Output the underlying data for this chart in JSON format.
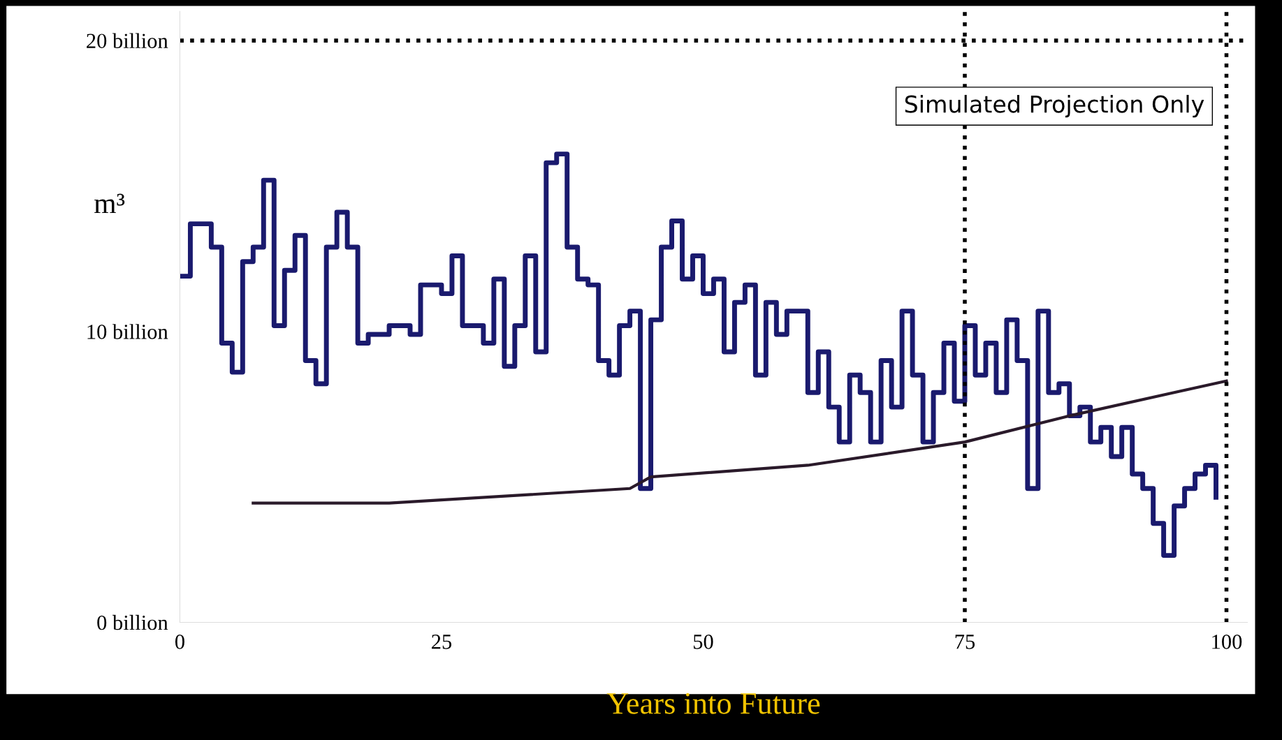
{
  "chart_data": {
    "type": "step",
    "xlabel": "Years into Future",
    "ylabel": "m³",
    "annotations": [
      "Simulated Projection Only"
    ],
    "xlim": [
      0,
      102
    ],
    "xticks": [
      0,
      25,
      50,
      75,
      100
    ],
    "ylim": [
      0,
      21
    ],
    "yticks": [
      {
        "value": 0,
        "label": "0 billion"
      },
      {
        "value": 10,
        "label": "10 billion"
      },
      {
        "value": 20,
        "label": "20 billion"
      }
    ],
    "grid": false,
    "legend": false,
    "line_style": "solid",
    "marker": "none",
    "ref_lines": [
      {
        "axis": "y",
        "value": 20,
        "label": null,
        "color": "#000000",
        "line_style": "dotted"
      },
      {
        "axis": "x",
        "value": 75,
        "label": null,
        "color": "#000000",
        "line_style": "dotted"
      },
      {
        "axis": "x",
        "value": 100,
        "label": null,
        "color": "#000000",
        "line_style": "dotted"
      }
    ],
    "series": [
      {
        "color": "#1a1a6e",
        "x": [
          0,
          1,
          3,
          4,
          5,
          6,
          7,
          8,
          9,
          10,
          11,
          12,
          13,
          14,
          15,
          16,
          17,
          18,
          20,
          22,
          23,
          25,
          26,
          27,
          29,
          30,
          31,
          32,
          33,
          34,
          35,
          36,
          37,
          38,
          39,
          40,
          41,
          42,
          43,
          44,
          45,
          46,
          47,
          48,
          49,
          50,
          51,
          52,
          53,
          54,
          55,
          56,
          57,
          58,
          60,
          61,
          62,
          63,
          64,
          65,
          66,
          67,
          68,
          69,
          70,
          71,
          72,
          73,
          74,
          75,
          76,
          77,
          78,
          79,
          80,
          81,
          82,
          83,
          84,
          85,
          86,
          87,
          88,
          89,
          90,
          91,
          92,
          93,
          94,
          95,
          96,
          97,
          98,
          99
        ],
        "values": [
          11.9,
          13.7,
          12.9,
          9.6,
          8.6,
          12.4,
          12.9,
          15.2,
          10.2,
          12.1,
          13.3,
          9.0,
          8.2,
          12.9,
          14.1,
          12.9,
          9.6,
          9.9,
          10.2,
          9.9,
          11.6,
          11.3,
          12.6,
          10.2,
          9.6,
          11.8,
          8.8,
          10.2,
          12.6,
          9.3,
          15.8,
          16.1,
          12.9,
          11.8,
          11.6,
          9.0,
          8.5,
          10.2,
          10.7,
          4.6,
          10.4,
          12.9,
          13.8,
          11.8,
          12.6,
          11.3,
          11.8,
          9.3,
          11.0,
          11.6,
          8.5,
          11.0,
          9.9,
          10.7,
          7.9,
          9.3,
          7.4,
          6.2,
          8.5,
          7.9,
          6.2,
          9.0,
          7.4,
          10.7,
          8.5,
          6.2,
          7.9,
          9.6,
          7.6,
          10.2,
          8.5,
          9.6,
          7.9,
          10.4,
          9.0,
          4.6,
          10.7,
          7.9,
          8.2,
          7.1,
          7.4,
          6.2,
          6.7,
          5.7,
          6.7,
          5.1,
          4.6,
          3.4,
          2.3,
          4.0,
          4.6,
          5.1,
          5.4,
          4.3
        ]
      },
      {
        "color": "#2a1a2a",
        "type": "line",
        "x": [
          7,
          20,
          43,
          45,
          60,
          75,
          85,
          95,
          100
        ],
        "values": [
          4.1,
          4.1,
          4.6,
          5.0,
          5.4,
          6.2,
          7.1,
          7.9,
          8.3
        ]
      }
    ]
  }
}
